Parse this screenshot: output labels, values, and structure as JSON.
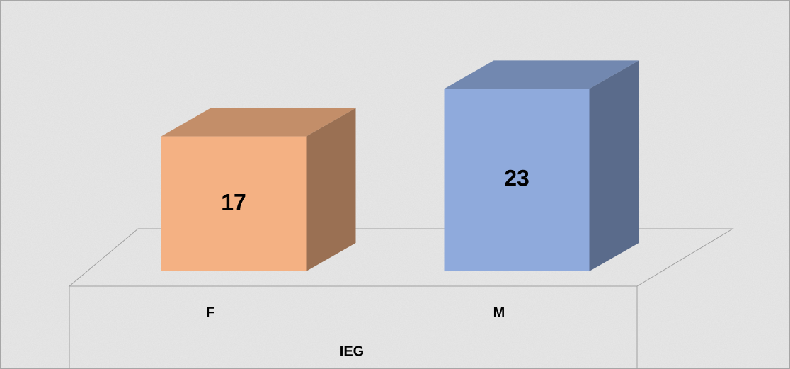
{
  "chart_data": {
    "type": "bar3d",
    "categories": [
      "F",
      "M"
    ],
    "values": [
      17,
      23
    ],
    "colors": [
      "#f4b183",
      "#8faadc"
    ],
    "xlabel": "IEG",
    "ylim": [
      0,
      30
    ]
  }
}
